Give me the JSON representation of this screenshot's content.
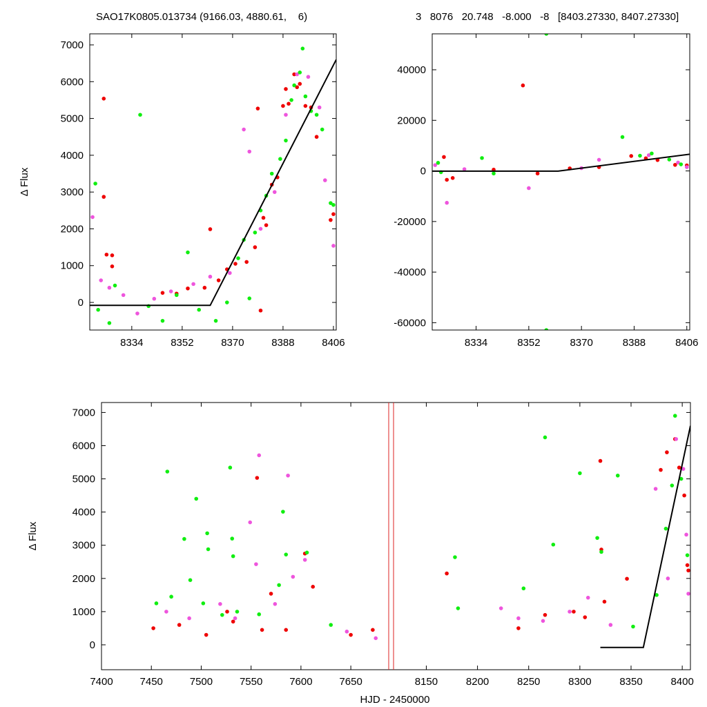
{
  "header": {
    "left_title": "SAO17K0805.013734 (9166.03, 4880.61,    6)",
    "right_title": "3   8076   20.748   -8.000   -8   [8403.27330, 8407.27330]"
  },
  "colors": {
    "series_red": "#ee0000",
    "series_green": "#11ee11",
    "series_pink": "#ee55dd",
    "model_line": "#000000",
    "gap_marker": "#dd2222"
  },
  "chart_data": [
    {
      "id": "zoom-left",
      "type": "scatter",
      "xlabel": "",
      "ylabel": "Δ Flux",
      "xlim": [
        8319,
        8407
      ],
      "ylim": [
        -750,
        7300
      ],
      "xticks": [
        8334,
        8352,
        8370,
        8388,
        8406
      ],
      "yticks": [
        0,
        1000,
        2000,
        3000,
        4000,
        5000,
        6000,
        7000
      ],
      "series": [
        {
          "color": "red",
          "points": [
            [
              8324,
              5540
            ],
            [
              8324,
              2870
            ],
            [
              8325,
              1300
            ],
            [
              8327,
              1280
            ],
            [
              8327,
              980
            ],
            [
              8345,
              260
            ],
            [
              8350,
              240
            ],
            [
              8354,
              380
            ],
            [
              8360,
              400
            ],
            [
              8362,
              1990
            ],
            [
              8365,
              600
            ],
            [
              8368,
              900
            ],
            [
              8371,
              1050
            ],
            [
              8375,
              1100
            ],
            [
              8378,
              1500
            ],
            [
              8379,
              5270
            ],
            [
              8380,
              -220
            ],
            [
              8381,
              2300
            ],
            [
              8382,
              2100
            ],
            [
              8384,
              3200
            ],
            [
              8386,
              3400
            ],
            [
              8388,
              5340
            ],
            [
              8389,
              5800
            ],
            [
              8390,
              5400
            ],
            [
              8392,
              6200
            ],
            [
              8393,
              5850
            ],
            [
              8394,
              5940
            ],
            [
              8396,
              5340
            ],
            [
              8398,
              5300
            ],
            [
              8400,
              4500
            ],
            [
              8405,
              2240
            ],
            [
              8406,
              2400
            ]
          ]
        },
        {
          "color": "green",
          "points": [
            [
              8321,
              3230
            ],
            [
              8322,
              -200
            ],
            [
              8326,
              -560
            ],
            [
              8328,
              460
            ],
            [
              8337,
              5100
            ],
            [
              8340,
              -100
            ],
            [
              8345,
              -500
            ],
            [
              8350,
              200
            ],
            [
              8354,
              1360
            ],
            [
              8358,
              -200
            ],
            [
              8364,
              -500
            ],
            [
              8368,
              0
            ],
            [
              8372,
              1200
            ],
            [
              8374,
              1700
            ],
            [
              8376,
              110
            ],
            [
              8378,
              1900
            ],
            [
              8380,
              2500
            ],
            [
              8382,
              2900
            ],
            [
              8384,
              3500
            ],
            [
              8387,
              3900
            ],
            [
              8389,
              4400
            ],
            [
              8391,
              5500
            ],
            [
              8392,
              5900
            ],
            [
              8394,
              6250
            ],
            [
              8395,
              6900
            ],
            [
              8396,
              5600
            ],
            [
              8398,
              5200
            ],
            [
              8400,
              5100
            ],
            [
              8402,
              4700
            ],
            [
              8405,
              2700
            ],
            [
              8406,
              2650
            ]
          ]
        },
        {
          "color": "pink",
          "points": [
            [
              8320,
              2320
            ],
            [
              8323,
              600
            ],
            [
              8326,
              400
            ],
            [
              8331,
              200
            ],
            [
              8336,
              -300
            ],
            [
              8342,
              100
            ],
            [
              8348,
              300
            ],
            [
              8356,
              500
            ],
            [
              8362,
              700
            ],
            [
              8369,
              800
            ],
            [
              8374,
              4700
            ],
            [
              8376,
              4100
            ],
            [
              8380,
              2000
            ],
            [
              8385,
              3000
            ],
            [
              8389,
              5100
            ],
            [
              8393,
              6200
            ],
            [
              8397,
              6130
            ],
            [
              8401,
              5300
            ],
            [
              8403,
              3320
            ],
            [
              8406,
              1540
            ]
          ]
        }
      ],
      "model_line": [
        [
          8319,
          -80
        ],
        [
          8362,
          -80
        ],
        [
          8407,
          6600
        ]
      ]
    },
    {
      "id": "zoom-right",
      "type": "scatter",
      "xlabel": "",
      "ylabel": "",
      "xlim": [
        8319,
        8407
      ],
      "ylim": [
        -62900,
        54200
      ],
      "xticks": [
        8334,
        8352,
        8370,
        8388,
        8406
      ],
      "yticks": [
        -60000,
        -40000,
        -20000,
        0,
        20000,
        40000
      ],
      "series": [
        {
          "color": "red",
          "points": [
            [
              8323,
              5500
            ],
            [
              8324,
              -3500
            ],
            [
              8326,
              -2800
            ],
            [
              8340,
              500
            ],
            [
              8350,
              33800
            ],
            [
              8355,
              -1000
            ],
            [
              8366,
              1000
            ],
            [
              8376,
              1500
            ],
            [
              8387,
              5900
            ],
            [
              8392,
              5000
            ],
            [
              8396,
              4300
            ],
            [
              8402,
              2400
            ],
            [
              8406,
              2200
            ]
          ]
        },
        {
          "color": "green",
          "points": [
            [
              8321,
              3200
            ],
            [
              8322,
              -500
            ],
            [
              8336,
              5100
            ],
            [
              8340,
              -1000
            ],
            [
              8358,
              54200
            ],
            [
              8358,
              -62900
            ],
            [
              8384,
              13400
            ],
            [
              8390,
              6000
            ],
            [
              8394,
              6900
            ],
            [
              8400,
              4500
            ],
            [
              8404,
              2600
            ]
          ]
        },
        {
          "color": "pink",
          "points": [
            [
              8320,
              2300
            ],
            [
              8324,
              -12600
            ],
            [
              8330,
              700
            ],
            [
              8352,
              -6800
            ],
            [
              8370,
              1100
            ],
            [
              8376,
              4400
            ],
            [
              8393,
              6200
            ],
            [
              8403,
              3300
            ],
            [
              8406,
              1500
            ]
          ]
        }
      ],
      "model_line": [
        [
          8319,
          -80
        ],
        [
          8362,
          -80
        ],
        [
          8407,
          6600
        ]
      ]
    },
    {
      "id": "full-lightcurve",
      "type": "scatter",
      "xlabel": "HJD - 2450000",
      "ylabel": "Δ Flux",
      "ylim": [
        -750,
        7300
      ],
      "yticks": [
        0,
        1000,
        2000,
        3000,
        4000,
        5000,
        6000,
        7000
      ],
      "segment_1": {
        "xlim": [
          7400,
          7688
        ],
        "xticks": [
          7400,
          7450,
          7500,
          7550,
          7600,
          7650
        ]
      },
      "segment_2": {
        "xlim": [
          8118,
          8408
        ],
        "xticks": [
          8150,
          8200,
          8250,
          8300,
          8350,
          8400
        ]
      },
      "series": [
        {
          "color": "red",
          "points": [
            [
              7452,
              500
            ],
            [
              7478,
              600
            ],
            [
              7505,
              300
            ],
            [
              7526,
              1000
            ],
            [
              7532,
              700
            ],
            [
              7556,
              5030
            ],
            [
              7561,
              450
            ],
            [
              7570,
              1540
            ],
            [
              7585,
              450
            ],
            [
              7604,
              2750
            ],
            [
              7612,
              1750
            ],
            [
              7650,
              300
            ],
            [
              7672,
              450
            ],
            [
              8170,
              2150
            ],
            [
              8240,
              500
            ],
            [
              8266,
              900
            ],
            [
              8294,
              1000
            ],
            [
              8305,
              830
            ],
            [
              8320,
              5540
            ],
            [
              8321,
              2870
            ],
            [
              8324,
              1300
            ],
            [
              8346,
              1990
            ],
            [
              8379,
              5270
            ],
            [
              8385,
              5800
            ],
            [
              8393,
              6200
            ],
            [
              8397,
              5340
            ],
            [
              8402,
              4500
            ],
            [
              8405,
              2400
            ],
            [
              8406,
              2240
            ]
          ]
        },
        {
          "color": "green",
          "points": [
            [
              7455,
              1250
            ],
            [
              7466,
              5220
            ],
            [
              7470,
              1450
            ],
            [
              7483,
              3190
            ],
            [
              7489,
              1950
            ],
            [
              7495,
              4400
            ],
            [
              7502,
              1250
            ],
            [
              7506,
              3360
            ],
            [
              7507,
              2880
            ],
            [
              7521,
              900
            ],
            [
              7529,
              5340
            ],
            [
              7531,
              3200
            ],
            [
              7532,
              2670
            ],
            [
              7536,
              1000
            ],
            [
              7558,
              920
            ],
            [
              7578,
              1800
            ],
            [
              7582,
              4010
            ],
            [
              7585,
              2720
            ],
            [
              7606,
              2780
            ],
            [
              7630,
              600
            ],
            [
              8178,
              2640
            ],
            [
              8181,
              1100
            ],
            [
              8245,
              1700
            ],
            [
              8266,
              6250
            ],
            [
              8274,
              3020
            ],
            [
              8300,
              5170
            ],
            [
              8317,
              3220
            ],
            [
              8321,
              2800
            ],
            [
              8337,
              5100
            ],
            [
              8352,
              550
            ],
            [
              8375,
              1500
            ],
            [
              8384,
              3500
            ],
            [
              8390,
              4800
            ],
            [
              8393,
              6900
            ],
            [
              8399,
              5000
            ],
            [
              8405,
              2700
            ]
          ]
        },
        {
          "color": "pink",
          "points": [
            [
              7465,
              1000
            ],
            [
              7488,
              800
            ],
            [
              7519,
              1230
            ],
            [
              7534,
              800
            ],
            [
              7549,
              3690
            ],
            [
              7555,
              2430
            ],
            [
              7558,
              5710
            ],
            [
              7574,
              1230
            ],
            [
              7587,
              5100
            ],
            [
              7592,
              2050
            ],
            [
              7604,
              2560
            ],
            [
              7646,
              400
            ],
            [
              7675,
              200
            ],
            [
              8223,
              1100
            ],
            [
              8240,
              800
            ],
            [
              8264,
              720
            ],
            [
              8290,
              1000
            ],
            [
              8308,
              1420
            ],
            [
              8330,
              600
            ],
            [
              8374,
              4700
            ],
            [
              8386,
              2000
            ],
            [
              8394,
              6200
            ],
            [
              8401,
              5300
            ],
            [
              8404,
              3320
            ],
            [
              8406,
              1540
            ]
          ]
        }
      ],
      "model_line": [
        [
          8320,
          -80
        ],
        [
          8362,
          -80
        ],
        [
          8408,
          6600
        ]
      ]
    }
  ]
}
